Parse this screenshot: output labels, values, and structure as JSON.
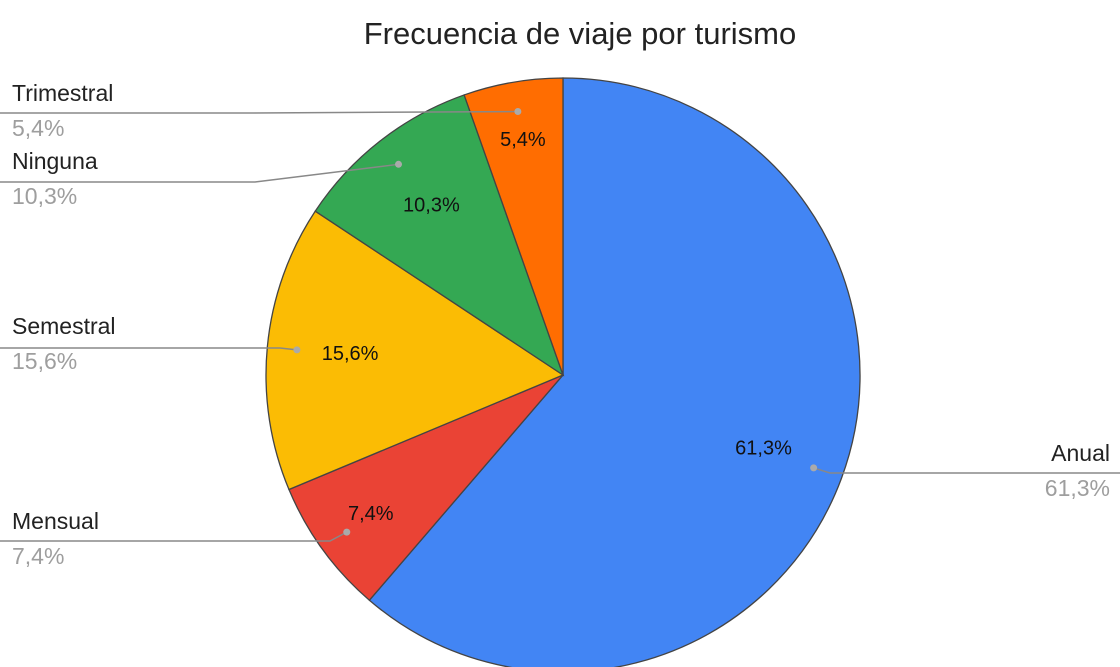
{
  "chart_data": {
    "type": "pie",
    "title": "Frecuencia de viaje por turismo",
    "categories": [
      "Anual",
      "Mensual",
      "Semestral",
      "Ninguna",
      "Trimestral"
    ],
    "values": [
      61.3,
      7.4,
      15.6,
      10.3,
      5.4
    ],
    "value_labels": [
      "61,3%",
      "7,4%",
      "15,6%",
      "10,3%",
      "5,4%"
    ],
    "colors": [
      "#4285f4",
      "#ea4335",
      "#fbbc04",
      "#34a853",
      "#ff6d01"
    ]
  }
}
